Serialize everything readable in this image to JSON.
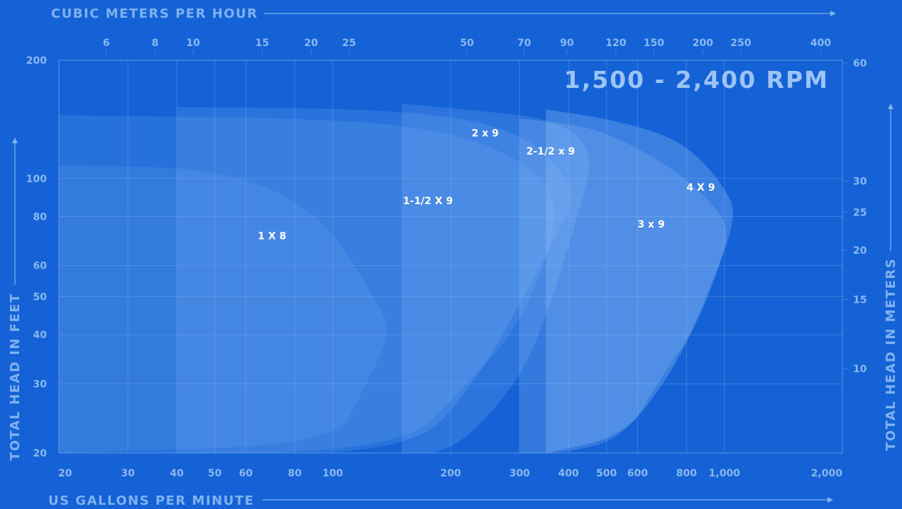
{
  "chart_data": {
    "type": "area",
    "title": "1,500 - 2,400 RPM",
    "xlabel": "US GALLONS PER MINUTE",
    "ylabel": "TOTAL HEAD IN FEET",
    "x2label": "CUBIC METERS PER HOUR",
    "y2label": "TOTAL HEAD IN METERS",
    "x_scale": "log",
    "y_scale": "log",
    "xlim": [
      20,
      2000
    ],
    "ylim": [
      20,
      200
    ],
    "x_ticks": [
      {
        "value": 20,
        "label": "20"
      },
      {
        "value": 30,
        "label": "30"
      },
      {
        "value": 40,
        "label": "40"
      },
      {
        "value": 50,
        "label": "50"
      },
      {
        "value": 60,
        "label": "60"
      },
      {
        "value": 80,
        "label": "80"
      },
      {
        "value": 100,
        "label": "100"
      },
      {
        "value": 200,
        "label": "200"
      },
      {
        "value": 300,
        "label": "300"
      },
      {
        "value": 400,
        "label": "400"
      },
      {
        "value": 500,
        "label": "500"
      },
      {
        "value": 600,
        "label": "600"
      },
      {
        "value": 800,
        "label": "800"
      },
      {
        "value": 1000,
        "label": "1,000"
      },
      {
        "value": 2000,
        "label": "2,000"
      }
    ],
    "y_ticks": [
      {
        "value": 20,
        "label": "20"
      },
      {
        "value": 30,
        "label": "30"
      },
      {
        "value": 40,
        "label": "40"
      },
      {
        "value": 50,
        "label": "50"
      },
      {
        "value": 60,
        "label": "60"
      },
      {
        "value": 80,
        "label": "80"
      },
      {
        "value": 100,
        "label": "100"
      },
      {
        "value": 200,
        "label": "200"
      }
    ],
    "x2_ticks": [
      {
        "value": 6,
        "label": "6"
      },
      {
        "value": 8,
        "label": "8"
      },
      {
        "value": 10,
        "label": "10"
      },
      {
        "value": 15,
        "label": "15"
      },
      {
        "value": 20,
        "label": "20"
      },
      {
        "value": 25,
        "label": "25"
      },
      {
        "value": 50,
        "label": "50"
      },
      {
        "value": 70,
        "label": "70"
      },
      {
        "value": 90,
        "label": "90"
      },
      {
        "value": 120,
        "label": "120"
      },
      {
        "value": 150,
        "label": "150"
      },
      {
        "value": 200,
        "label": "200"
      },
      {
        "value": 250,
        "label": "250"
      },
      {
        "value": 400,
        "label": "400"
      }
    ],
    "y2_ticks": [
      {
        "value": 10,
        "label": "10"
      },
      {
        "value": 15,
        "label": "15"
      },
      {
        "value": 20,
        "label": "20"
      },
      {
        "value": 25,
        "label": "25"
      },
      {
        "value": 30,
        "label": "30"
      },
      {
        "value": 60,
        "label": "60"
      }
    ],
    "grid": true,
    "series": [
      {
        "name": "1 X 8",
        "color": "#7fb3f5",
        "label_point": [
          70,
          70
        ],
        "outline": [
          [
            20,
            108
          ],
          [
            40,
            107
          ],
          [
            60,
            100
          ],
          [
            80,
            88
          ],
          [
            100,
            73
          ],
          [
            120,
            55
          ],
          [
            135,
            45
          ],
          [
            140,
            40
          ],
          [
            118,
            28
          ],
          [
            100,
            21
          ],
          [
            20,
            20
          ]
        ]
      },
      {
        "name": "1-1/2 X 9",
        "color": "#7fb3f5",
        "label_point": [
          175,
          86
        ],
        "outline": [
          [
            20,
            145
          ],
          [
            100,
            142
          ],
          [
            200,
            132
          ],
          [
            300,
            112
          ],
          [
            360,
            95
          ],
          [
            375,
            75
          ],
          [
            300,
            42
          ],
          [
            220,
            30
          ],
          [
            150,
            20
          ],
          [
            20,
            20
          ]
        ]
      },
      {
        "name": "2 x 9",
        "color": "#7fb3f5",
        "label_point": [
          245,
          128
        ],
        "outline": [
          [
            40,
            152
          ],
          [
            100,
            151
          ],
          [
            200,
            145
          ],
          [
            300,
            130
          ],
          [
            360,
            112
          ],
          [
            405,
            96
          ],
          [
            410,
            85
          ],
          [
            300,
            48
          ],
          [
            230,
            30
          ],
          [
            160,
            20
          ],
          [
            40,
            20
          ]
        ]
      },
      {
        "name": "2-1/2 x 9",
        "color": "#7fb3f5",
        "label_point": [
          360,
          115
        ],
        "outline": [
          [
            150,
            155
          ],
          [
            250,
            148
          ],
          [
            350,
            142
          ],
          [
            420,
            130
          ],
          [
            460,
            112
          ],
          [
            430,
            85
          ],
          [
            340,
            40
          ],
          [
            280,
            28
          ],
          [
            200,
            20
          ],
          [
            150,
            20
          ]
        ]
      },
      {
        "name": "3 x 9",
        "color": "#8fbef7",
        "label_point": [
          650,
          75
        ],
        "outline": [
          [
            300,
            142
          ],
          [
            450,
            136
          ],
          [
            600,
            120
          ],
          [
            800,
            100
          ],
          [
            1000,
            80
          ],
          [
            1020,
            68
          ],
          [
            850,
            42
          ],
          [
            700,
            32
          ],
          [
            560,
            22
          ],
          [
            400,
            20
          ],
          [
            300,
            20
          ]
        ]
      },
      {
        "name": "4 X 9",
        "color": "#9cc8fa",
        "label_point": [
          870,
          93
        ],
        "outline": [
          [
            350,
            150
          ],
          [
            500,
            142
          ],
          [
            700,
            130
          ],
          [
            850,
            115
          ],
          [
            1000,
            95
          ],
          [
            1080,
            80
          ],
          [
            900,
            50
          ],
          [
            800,
            38
          ],
          [
            700,
            30
          ],
          [
            550,
            22
          ],
          [
            350,
            20
          ]
        ]
      }
    ]
  }
}
